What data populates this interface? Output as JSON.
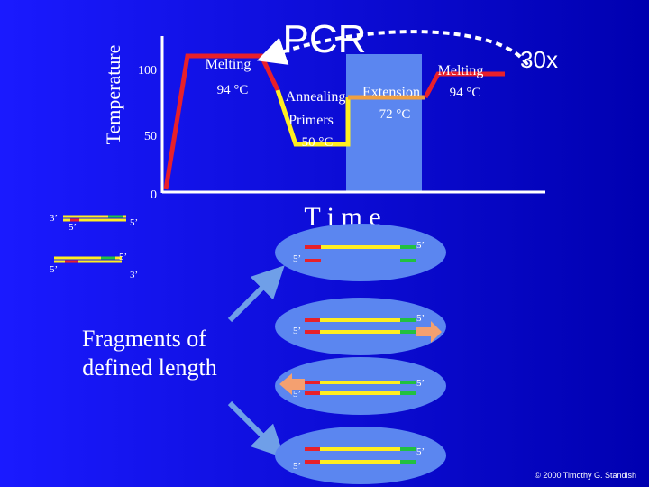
{
  "title": "PCR",
  "y_axis_label": "Temperature",
  "temperature_ticks": [
    "100",
    "50",
    "0"
  ],
  "steps": {
    "melting_1": {
      "label": "Melting",
      "temp": "94 °C"
    },
    "annealing": {
      "label": "Annealing",
      "sublabel": "Primers",
      "temp": "50 °C"
    },
    "extension": {
      "label": "Extension",
      "temp": "72 °C"
    },
    "melting_2": {
      "label": "Melting",
      "temp": "94 °C"
    }
  },
  "repeat": "30x",
  "x_axis_label": "T i m e",
  "strand_ends": [
    "3’",
    "5’",
    "5’",
    "5’",
    "5’",
    "3’",
    "5’",
    "5’",
    "5’",
    "5’",
    "5’",
    "5’",
    "5’",
    "5’"
  ],
  "caption": [
    "Fragments of",
    "defined length"
  ],
  "copyright": "© 2000 Timothy G. Standish"
}
